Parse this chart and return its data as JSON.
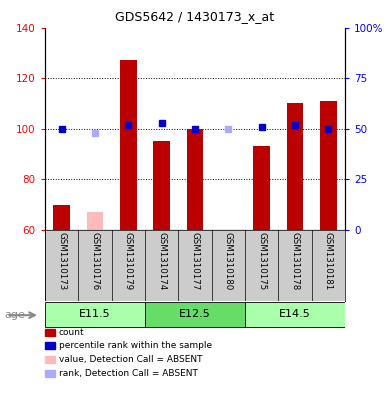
{
  "title": "GDS5642 / 1430173_x_at",
  "samples": [
    "GSM1310173",
    "GSM1310176",
    "GSM1310179",
    "GSM1310174",
    "GSM1310177",
    "GSM1310180",
    "GSM1310175",
    "GSM1310178",
    "GSM1310181"
  ],
  "groups": [
    {
      "label": "E11.5",
      "start": 0,
      "end": 2,
      "color": "#aaffaa"
    },
    {
      "label": "E12.5",
      "start": 3,
      "end": 5,
      "color": "#66dd66"
    },
    {
      "label": "E14.5",
      "start": 6,
      "end": 8,
      "color": "#aaffaa"
    }
  ],
  "absent_samples": [
    1,
    5
  ],
  "bar_values": [
    70,
    67,
    127,
    95,
    100,
    60,
    93,
    110,
    111
  ],
  "rank_values": [
    50,
    48,
    52,
    53,
    50,
    50,
    51,
    52,
    50
  ],
  "ylim_left": [
    60,
    140
  ],
  "ylim_right": [
    0,
    100
  ],
  "yticks_left": [
    60,
    80,
    100,
    120,
    140
  ],
  "yticks_right": [
    0,
    25,
    50,
    75,
    100
  ],
  "bar_width": 0.5,
  "bar_color_present": "#bb0000",
  "bar_color_absent": "#ffbbbb",
  "rank_color_present": "#0000cc",
  "rank_color_absent": "#aaaaff",
  "rank_marker_size": 5,
  "plot_bg_color": "#ffffff",
  "label_bg_color": "#cccccc",
  "age_label": "age",
  "legend_items": [
    {
      "label": "count",
      "color": "#bb0000"
    },
    {
      "label": "percentile rank within the sample",
      "color": "#0000cc"
    },
    {
      "label": "value, Detection Call = ABSENT",
      "color": "#ffbbbb"
    },
    {
      "label": "rank, Detection Call = ABSENT",
      "color": "#aaaaff"
    }
  ]
}
